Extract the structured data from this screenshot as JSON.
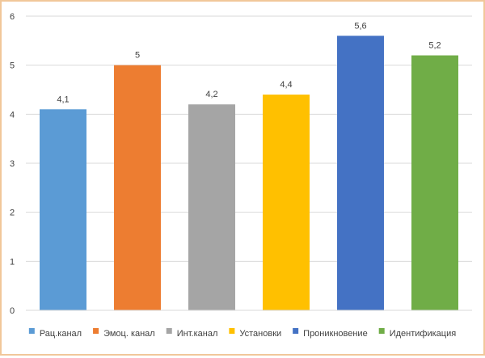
{
  "chart_data": {
    "type": "bar",
    "categories": [
      "Рац.канал",
      "Эмоц. канал",
      "Инт.канал",
      "Установки",
      "Проникновение",
      "Идентификация"
    ],
    "values": [
      4.1,
      5.0,
      4.2,
      4.4,
      5.6,
      5.2
    ],
    "data_labels": [
      "4,1",
      "5",
      "4,2",
      "4,4",
      "5,6",
      "5,2"
    ],
    "colors": [
      "#5b9bd5",
      "#ed7d31",
      "#a5a5a5",
      "#ffc000",
      "#4472c4",
      "#70ad47"
    ],
    "ylim": [
      0,
      6
    ],
    "yticks": [
      0,
      1,
      2,
      3,
      4,
      5,
      6
    ],
    "ytick_labels": [
      "0",
      "1",
      "2",
      "3",
      "4",
      "5",
      "6"
    ],
    "grid": true,
    "legend_position": "bottom",
    "title": "",
    "xlabel": "",
    "ylabel": ""
  }
}
